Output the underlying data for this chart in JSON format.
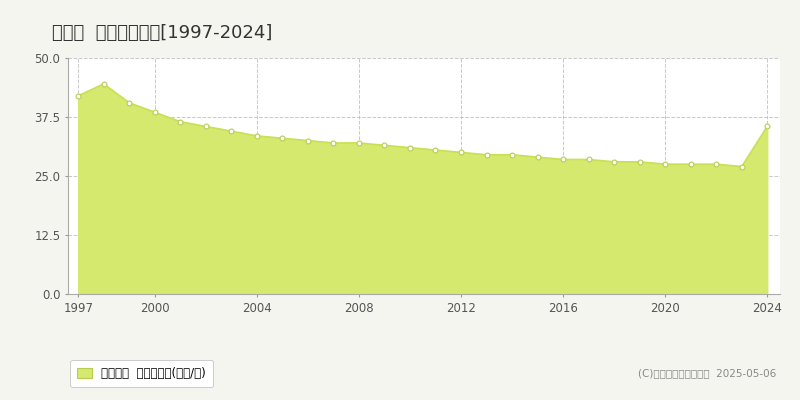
{
  "title": "開成町  基準地価推移[1997-2024]",
  "years": [
    1997,
    1998,
    1999,
    2000,
    2001,
    2002,
    2003,
    2004,
    2005,
    2006,
    2007,
    2008,
    2009,
    2010,
    2011,
    2012,
    2013,
    2014,
    2015,
    2016,
    2017,
    2018,
    2019,
    2020,
    2021,
    2022,
    2023,
    2024
  ],
  "values": [
    42.0,
    44.5,
    40.5,
    38.5,
    36.5,
    35.5,
    34.5,
    33.5,
    33.0,
    32.5,
    32.0,
    32.0,
    31.5,
    31.0,
    30.5,
    30.0,
    29.5,
    29.5,
    29.0,
    28.5,
    28.5,
    28.0,
    28.0,
    27.5,
    27.5,
    27.5,
    27.0,
    35.5
  ],
  "line_color": "#c8e054",
  "fill_color": "#d4e96e",
  "marker_color": "#ffffff",
  "marker_edge_color": "#b8cc50",
  "ylim": [
    0,
    50
  ],
  "yticks": [
    0,
    12.5,
    25,
    37.5,
    50
  ],
  "xticks": [
    1997,
    2000,
    2004,
    2008,
    2012,
    2016,
    2020,
    2024
  ],
  "grid_color": "#bbbbbb",
  "background_color": "#f5f5f0",
  "plot_bg_color": "#ffffff",
  "title_fontsize": 13,
  "legend_label": "基準地価  平均坪単価(万円/坪)",
  "copyright_text": "(C)土地価格ドットコム  2025-05-06",
  "border_color": "#aaaaaa"
}
